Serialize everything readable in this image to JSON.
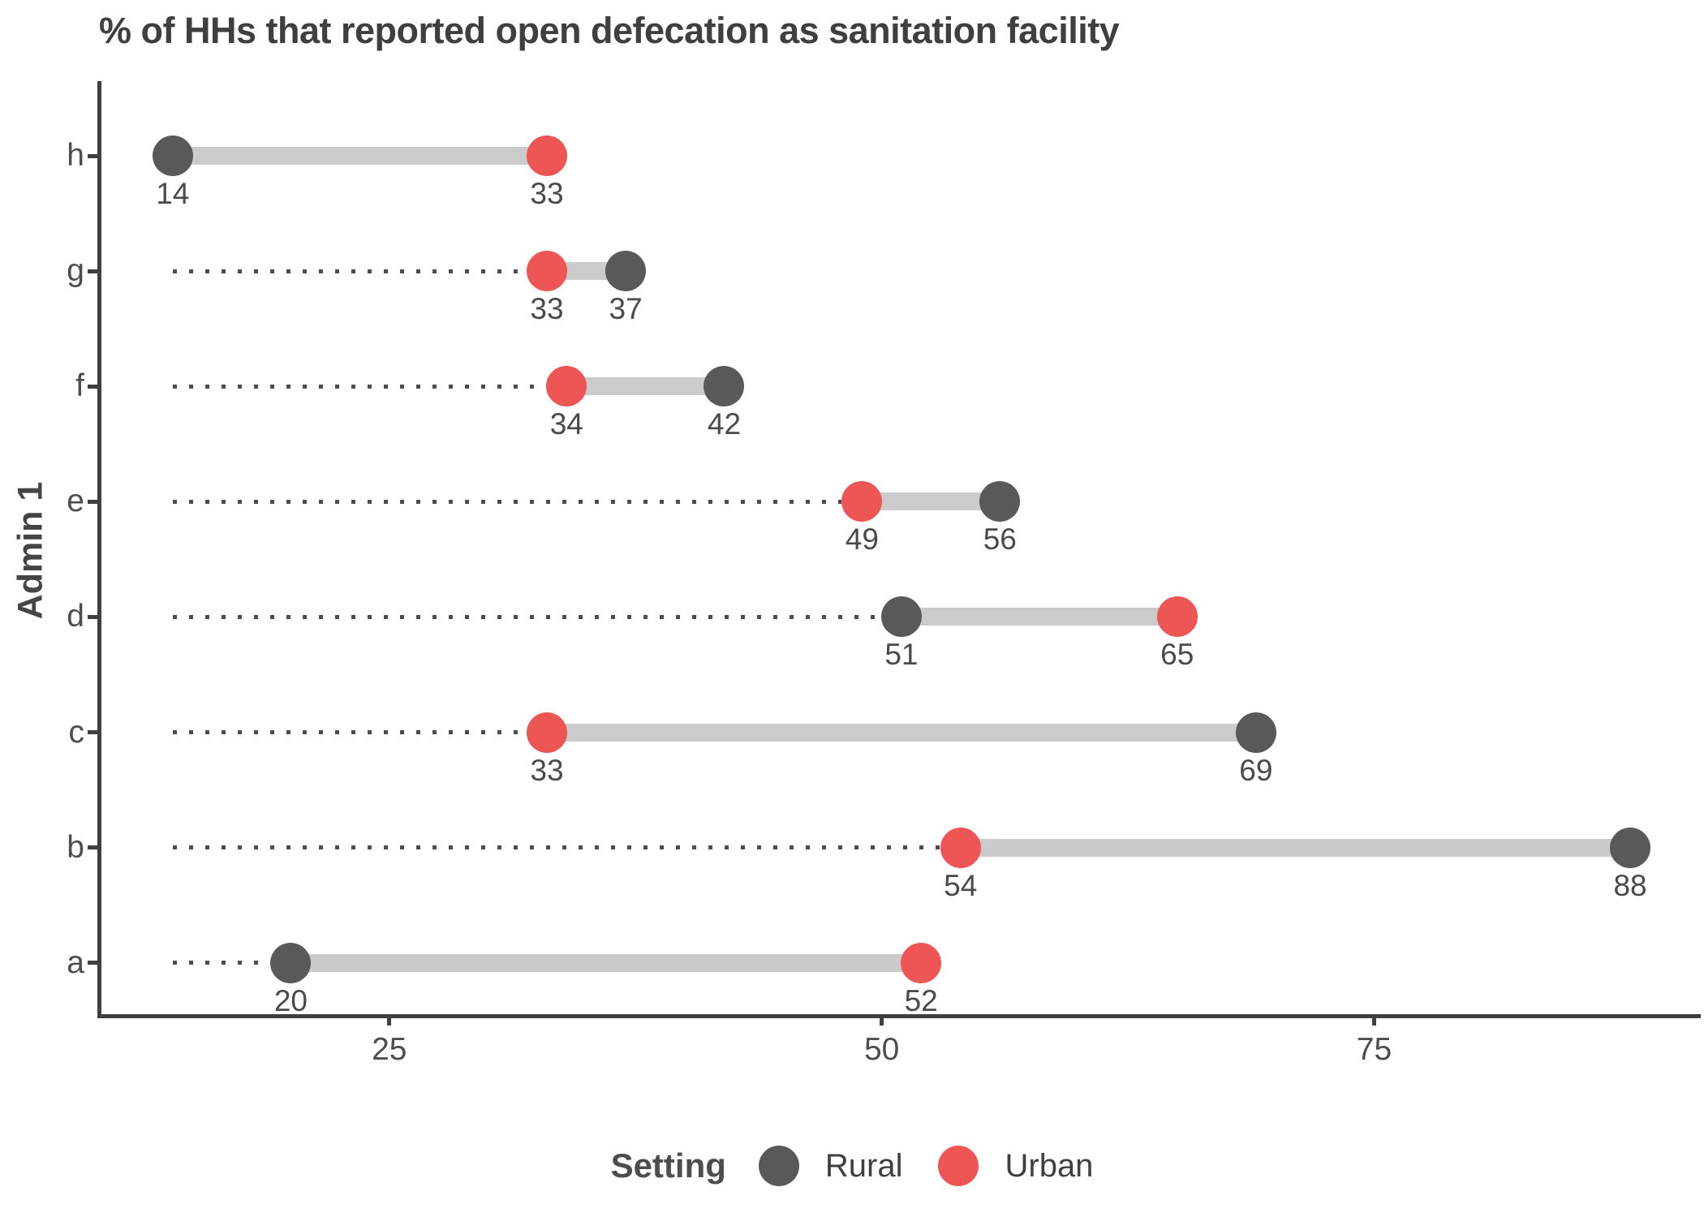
{
  "chart_data": {
    "type": "scatter",
    "variant": "dumbbell",
    "title": "% of HHs that reported open defecation as sanitation facility",
    "xlabel": "",
    "ylabel": "Admin 1",
    "categories": [
      "h",
      "g",
      "f",
      "e",
      "d",
      "c",
      "b",
      "a"
    ],
    "series": [
      {
        "name": "Rural",
        "color": "#58595b",
        "values": [
          14,
          37,
          42,
          56,
          51,
          69,
          88,
          20
        ]
      },
      {
        "name": "Urban",
        "color": "#ee5555",
        "values": [
          33,
          33,
          34,
          49,
          65,
          33,
          54,
          52
        ]
      }
    ],
    "x_ticks": [
      "25",
      "50",
      "75"
    ],
    "x_tick_values": [
      25,
      50,
      75
    ],
    "xlim": [
      10.3,
      91.5
    ],
    "grid": false,
    "value_labels_shown": true,
    "leader_line": {
      "style": "dotted",
      "from_value": 14
    },
    "legend_position": "bottom"
  },
  "legend": {
    "title": "Setting",
    "items": [
      {
        "label": "Rural",
        "color": "#58595b"
      },
      {
        "label": "Urban",
        "color": "#ee5555"
      }
    ]
  },
  "colors": {
    "band": "#cbcbcb",
    "leader": "#4d4d4d",
    "axis_line": "#404040",
    "tick_text": "#4d4d4d",
    "title_text": "#3f3f3f"
  }
}
